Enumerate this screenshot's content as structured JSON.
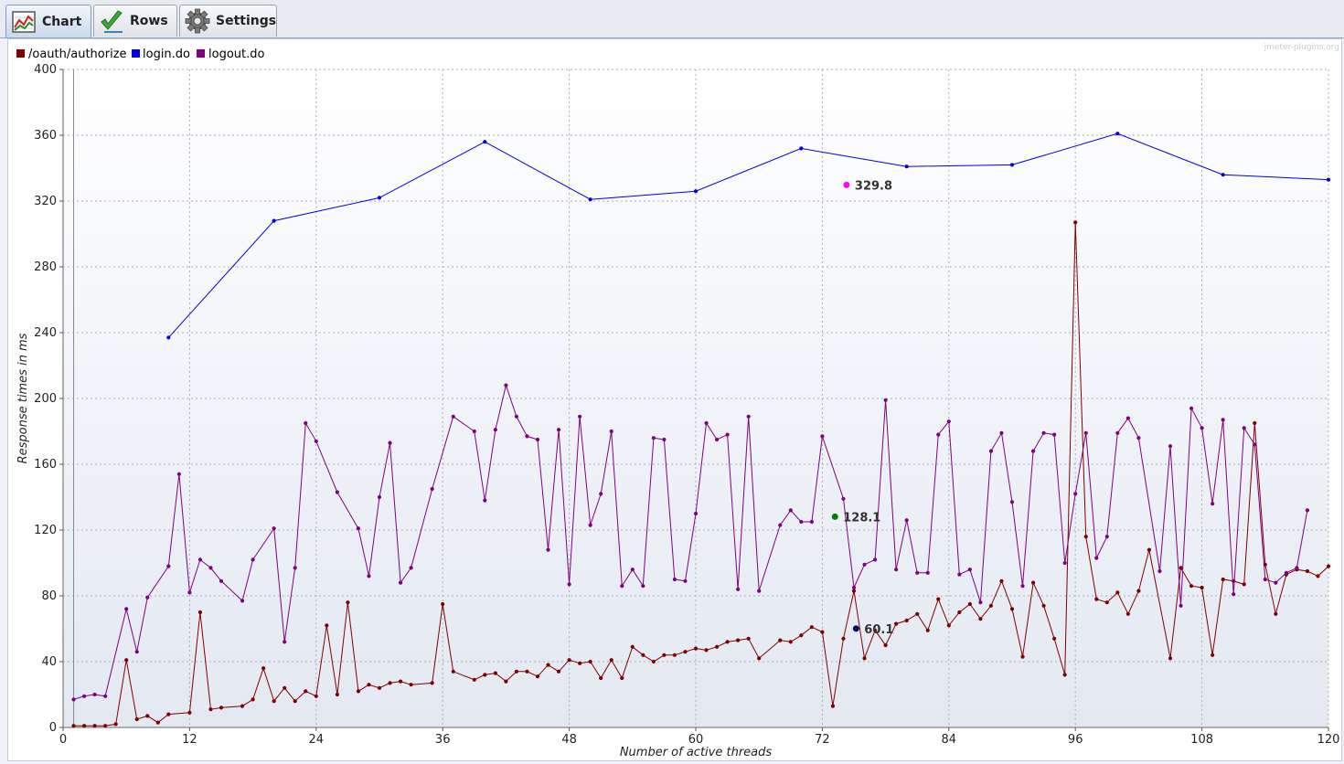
{
  "tabs": [
    {
      "label": "Chart",
      "icon": "chart-icon"
    },
    {
      "label": "Rows",
      "icon": "checkmark-icon"
    },
    {
      "label": "Settings",
      "icon": "gear-icon"
    }
  ],
  "watermark": "jmeter-plugins.org",
  "colors": {
    "/oauth/authorize": "#800000",
    "login.do": "#0000e0",
    "logout.do": "#800080",
    "marker_login": "#ff00ff",
    "marker_logout": "#008000",
    "marker_oauth": "#000060"
  },
  "chart_data": {
    "type": "line",
    "title": "",
    "xlabel": "Number of active threads",
    "ylabel": "Response times in ms",
    "xlim": [
      0,
      120
    ],
    "ylim": [
      0,
      400
    ],
    "xticks": [
      0,
      12,
      24,
      36,
      48,
      60,
      72,
      84,
      96,
      108,
      120
    ],
    "yticks": [
      0,
      40,
      80,
      120,
      160,
      200,
      240,
      280,
      320,
      360,
      400
    ],
    "grid": true,
    "legend": "top-left",
    "series": [
      {
        "name": "/oauth/authorize",
        "points": [
          [
            1,
            1
          ],
          [
            2,
            1
          ],
          [
            3,
            1
          ],
          [
            4,
            1
          ],
          [
            5,
            2
          ],
          [
            6,
            41
          ],
          [
            7,
            5
          ],
          [
            8,
            7
          ],
          [
            9,
            3
          ],
          [
            10,
            8
          ],
          [
            12,
            9
          ],
          [
            13,
            70
          ],
          [
            14,
            11
          ],
          [
            15,
            12
          ],
          [
            17,
            13
          ],
          [
            18,
            17
          ],
          [
            19,
            36
          ],
          [
            20,
            16
          ],
          [
            21,
            24
          ],
          [
            22,
            16
          ],
          [
            23,
            22
          ],
          [
            24,
            19
          ],
          [
            25,
            62
          ],
          [
            26,
            20
          ],
          [
            27,
            76
          ],
          [
            28,
            22
          ],
          [
            29,
            26
          ],
          [
            30,
            24
          ],
          [
            31,
            27
          ],
          [
            32,
            28
          ],
          [
            33,
            26
          ],
          [
            35,
            27
          ],
          [
            36,
            75
          ],
          [
            37,
            34
          ],
          [
            39,
            29
          ],
          [
            40,
            32
          ],
          [
            41,
            33
          ],
          [
            42,
            28
          ],
          [
            43,
            34
          ],
          [
            44,
            34
          ],
          [
            45,
            31
          ],
          [
            46,
            38
          ],
          [
            47,
            34
          ],
          [
            48,
            41
          ],
          [
            49,
            39
          ],
          [
            50,
            40
          ],
          [
            51,
            30
          ],
          [
            52,
            41
          ],
          [
            53,
            30
          ],
          [
            54,
            49
          ],
          [
            55,
            44
          ],
          [
            56,
            40
          ],
          [
            57,
            44
          ],
          [
            58,
            44
          ],
          [
            59,
            46
          ],
          [
            60,
            48
          ],
          [
            61,
            47
          ],
          [
            62,
            49
          ],
          [
            63,
            52
          ],
          [
            64,
            53
          ],
          [
            65,
            54
          ],
          [
            66,
            42
          ],
          [
            68,
            53
          ],
          [
            69,
            52
          ],
          [
            70,
            56
          ],
          [
            71,
            61
          ],
          [
            72,
            58
          ],
          [
            73,
            13
          ],
          [
            74,
            54
          ],
          [
            75,
            83
          ],
          [
            76,
            42
          ],
          [
            77,
            59
          ],
          [
            78,
            50
          ],
          [
            79,
            63
          ],
          [
            80,
            65
          ],
          [
            81,
            69
          ],
          [
            82,
            59
          ],
          [
            83,
            78
          ],
          [
            84,
            62
          ],
          [
            85,
            70
          ],
          [
            86,
            75
          ],
          [
            87,
            66
          ],
          [
            88,
            74
          ],
          [
            89,
            89
          ],
          [
            90,
            72
          ],
          [
            91,
            43
          ],
          [
            92,
            88
          ],
          [
            93,
            74
          ],
          [
            94,
            54
          ],
          [
            95,
            32
          ],
          [
            96,
            307
          ],
          [
            97,
            116
          ],
          [
            98,
            78
          ],
          [
            99,
            76
          ],
          [
            100,
            82
          ],
          [
            101,
            69
          ],
          [
            102,
            83
          ],
          [
            103,
            108
          ],
          [
            105,
            42
          ],
          [
            106,
            97
          ],
          [
            107,
            86
          ],
          [
            108,
            85
          ],
          [
            109,
            44
          ],
          [
            110,
            90
          ],
          [
            111,
            89
          ],
          [
            112,
            87
          ],
          [
            113,
            185
          ],
          [
            114,
            99
          ],
          [
            115,
            69
          ],
          [
            116,
            93
          ],
          [
            117,
            96
          ],
          [
            118,
            95
          ],
          [
            119,
            92
          ],
          [
            120,
            98
          ]
        ]
      },
      {
        "name": "login.do",
        "points": [
          [
            10,
            237
          ],
          [
            20,
            308
          ],
          [
            30,
            322
          ],
          [
            40,
            356
          ],
          [
            50,
            321
          ],
          [
            60,
            326
          ],
          [
            70,
            352
          ],
          [
            80,
            341
          ],
          [
            90,
            342
          ],
          [
            100,
            361
          ],
          [
            110,
            336
          ],
          [
            120,
            333
          ]
        ]
      },
      {
        "name": "logout.do",
        "points": [
          [
            1,
            17
          ],
          [
            2,
            19
          ],
          [
            3,
            20
          ],
          [
            4,
            19
          ],
          [
            6,
            72
          ],
          [
            7,
            46
          ],
          [
            8,
            79
          ],
          [
            10,
            98
          ],
          [
            11,
            154
          ],
          [
            12,
            82
          ],
          [
            13,
            102
          ],
          [
            14,
            97
          ],
          [
            15,
            89
          ],
          [
            17,
            77
          ],
          [
            18,
            102
          ],
          [
            20,
            121
          ],
          [
            21,
            52
          ],
          [
            22,
            97
          ],
          [
            23,
            185
          ],
          [
            24,
            174
          ],
          [
            26,
            143
          ],
          [
            28,
            121
          ],
          [
            29,
            92
          ],
          [
            30,
            140
          ],
          [
            31,
            173
          ],
          [
            32,
            88
          ],
          [
            33,
            97
          ],
          [
            35,
            145
          ],
          [
            37,
            189
          ],
          [
            39,
            180
          ],
          [
            40,
            138
          ],
          [
            41,
            181
          ],
          [
            42,
            208
          ],
          [
            43,
            189
          ],
          [
            44,
            177
          ],
          [
            45,
            175
          ],
          [
            46,
            108
          ],
          [
            47,
            181
          ],
          [
            48,
            87
          ],
          [
            49,
            189
          ],
          [
            50,
            123
          ],
          [
            51,
            142
          ],
          [
            52,
            180
          ],
          [
            53,
            86
          ],
          [
            54,
            96
          ],
          [
            55,
            86
          ],
          [
            56,
            176
          ],
          [
            57,
            175
          ],
          [
            58,
            90
          ],
          [
            59,
            89
          ],
          [
            60,
            130
          ],
          [
            61,
            185
          ],
          [
            62,
            175
          ],
          [
            63,
            178
          ],
          [
            64,
            84
          ],
          [
            65,
            189
          ],
          [
            66,
            83
          ],
          [
            68,
            123
          ],
          [
            69,
            132
          ],
          [
            70,
            125
          ],
          [
            71,
            125
          ],
          [
            72,
            177
          ],
          [
            74,
            139
          ],
          [
            75,
            85
          ],
          [
            76,
            99
          ],
          [
            77,
            102
          ],
          [
            78,
            199
          ],
          [
            79,
            96
          ],
          [
            80,
            126
          ],
          [
            81,
            94
          ],
          [
            82,
            94
          ],
          [
            83,
            178
          ],
          [
            84,
            186
          ],
          [
            85,
            93
          ],
          [
            86,
            96
          ],
          [
            87,
            76
          ],
          [
            88,
            168
          ],
          [
            89,
            179
          ],
          [
            90,
            137
          ],
          [
            91,
            86
          ],
          [
            92,
            168
          ],
          [
            93,
            179
          ],
          [
            94,
            178
          ],
          [
            95,
            100
          ],
          [
            96,
            142
          ],
          [
            97,
            179
          ],
          [
            98,
            103
          ],
          [
            99,
            116
          ],
          [
            100,
            179
          ],
          [
            101,
            188
          ],
          [
            102,
            176
          ],
          [
            104,
            95
          ],
          [
            105,
            171
          ],
          [
            106,
            74
          ],
          [
            107,
            194
          ],
          [
            108,
            182
          ],
          [
            109,
            136
          ],
          [
            110,
            187
          ],
          [
            111,
            81
          ],
          [
            112,
            182
          ],
          [
            113,
            172
          ],
          [
            114,
            90
          ],
          [
            115,
            88
          ],
          [
            116,
            94
          ],
          [
            117,
            97
          ],
          [
            118,
            132
          ]
        ]
      }
    ],
    "markers": [
      {
        "x": 74.3,
        "y": 329.8,
        "label": "329.8",
        "color": "#ff00ff"
      },
      {
        "x": 73.2,
        "y": 128.1,
        "label": "128.1",
        "color": "#008000"
      },
      {
        "x": 75.2,
        "y": 60.1,
        "label": "60.1",
        "color": "#000060"
      }
    ]
  }
}
